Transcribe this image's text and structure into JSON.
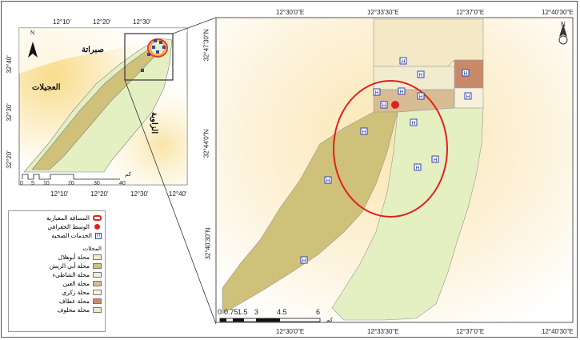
{
  "main_map": {
    "top_ticks": [
      "12°30'0\"E",
      "12°33'30\"E",
      "12°37'0\"E",
      "12°40'30\"E"
    ],
    "bottom_ticks": [
      "12°30'0\"E",
      "12°33'30\"E",
      "12°37'0\"E",
      "12°40'30\"E"
    ],
    "left_ticks": [
      "32°47'30\"N",
      "32°44'0\"N",
      "32°40'30\"N"
    ],
    "scale": {
      "labels": [
        "0",
        "0.75",
        "1.5",
        "3",
        "4.5",
        "6"
      ],
      "unit": "كم"
    },
    "north_label": "N"
  },
  "inset_map": {
    "top_ticks": [
      "12°10'",
      "12°20'",
      "12°30'"
    ],
    "bottom_ticks": [
      "12°10'",
      "12°20'",
      "12°30'",
      "12°40'"
    ],
    "left_ticks": [
      "32°40'",
      "32°30'",
      "32°20'"
    ],
    "north_label": "N",
    "places": {
      "sabratha": "صبراتة",
      "ajilat": "العجيلات",
      "zawiya": "الزاوية"
    },
    "scale": {
      "labels": [
        "0",
        "5",
        "10",
        "20",
        "30",
        "40"
      ],
      "unit": "كم"
    }
  },
  "legend": {
    "items": [
      {
        "label": "المسافة المعيارية",
        "symbol": "red-ellipse"
      },
      {
        "label": "الوسط الجغرافي",
        "symbol": "red-dot"
      },
      {
        "label": "الخدمات الصحية",
        "symbol": "health-marker"
      }
    ],
    "section_title": "المحلات",
    "districts": [
      {
        "label": "محلة أبوهلال",
        "color": "#f4e8c6"
      },
      {
        "label": "محلة أبي الريش",
        "color": "#cfc07a"
      },
      {
        "label": "محلة الشاطيء",
        "color": "#f1ecd0"
      },
      {
        "label": "محلة العين",
        "color": "#d8bc93"
      },
      {
        "label": "محلة زكري",
        "color": "#f6f0dc"
      },
      {
        "label": "محلة عطاف",
        "color": "#c98a6a"
      },
      {
        "label": "محلة مخلوف",
        "color": "#e4efc2"
      }
    ]
  }
}
